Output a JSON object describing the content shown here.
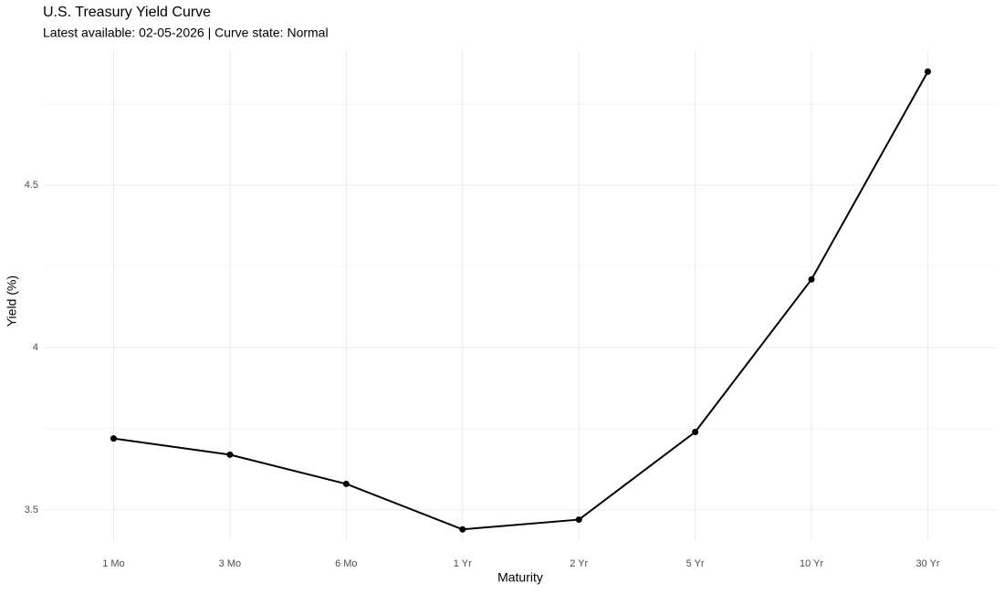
{
  "chart_data": {
    "type": "line",
    "title": "U.S. Treasury Yield Curve",
    "subtitle": "Latest available: 02-05-2026 | Curve state: Normal",
    "x_label": "Maturity",
    "y_label": "Yield (%)",
    "categories": [
      "1 Mo",
      "3 Mo",
      "6 Mo",
      "1 Yr",
      "2 Yr",
      "5 Yr",
      "10 Yr",
      "30 Yr"
    ],
    "values": [
      3.72,
      3.67,
      3.58,
      3.44,
      3.47,
      3.74,
      4.21,
      4.85
    ],
    "color": "#000000",
    "ylim": [
      3.407,
      4.916
    ],
    "yticks": [
      3.5,
      4.0,
      4.5
    ],
    "y_minor_ticks": [
      3.75,
      4.25,
      4.75
    ],
    "grid": true
  }
}
